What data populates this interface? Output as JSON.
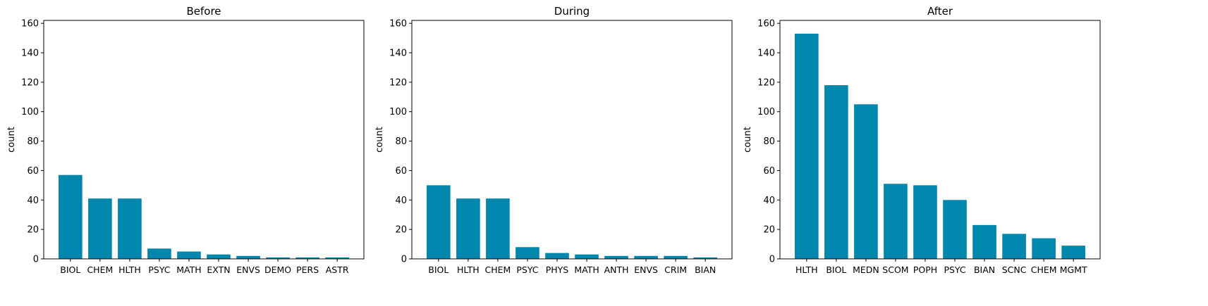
{
  "chart_data": [
    {
      "type": "bar",
      "title": "Before",
      "xlabel": "",
      "ylabel": "count",
      "ylim": [
        0,
        162
      ],
      "yticks": [
        0,
        20,
        40,
        60,
        80,
        100,
        120,
        140,
        160
      ],
      "grid": false,
      "bar_color": "#0087ad",
      "categories": [
        "BIOL",
        "CHEM",
        "HLTH",
        "PSYC",
        "MATH",
        "EXTN",
        "ENVS",
        "DEMO",
        "PERS",
        "ASTR"
      ],
      "values": [
        57,
        41,
        41,
        7,
        5,
        3,
        2,
        1,
        1,
        1
      ]
    },
    {
      "type": "bar",
      "title": "During",
      "xlabel": "",
      "ylabel": "count",
      "ylim": [
        0,
        162
      ],
      "yticks": [
        0,
        20,
        40,
        60,
        80,
        100,
        120,
        140,
        160
      ],
      "grid": false,
      "bar_color": "#0087ad",
      "categories": [
        "BIOL",
        "HLTH",
        "CHEM",
        "PSYC",
        "PHYS",
        "MATH",
        "ANTH",
        "ENVS",
        "CRIM",
        "BIAN"
      ],
      "values": [
        50,
        41,
        41,
        8,
        4,
        3,
        2,
        2,
        2,
        1
      ]
    },
    {
      "type": "bar",
      "title": "After",
      "xlabel": "",
      "ylabel": "count",
      "ylim": [
        0,
        162
      ],
      "yticks": [
        0,
        20,
        40,
        60,
        80,
        100,
        120,
        140,
        160
      ],
      "grid": false,
      "bar_color": "#0087ad",
      "categories": [
        "HLTH",
        "BIOL",
        "MEDN",
        "SCOM",
        "POPH",
        "PSYC",
        "BIAN",
        "SCNC",
        "CHEM",
        "MGMT"
      ],
      "values": [
        153,
        118,
        105,
        51,
        50,
        40,
        23,
        17,
        14,
        9
      ]
    }
  ]
}
